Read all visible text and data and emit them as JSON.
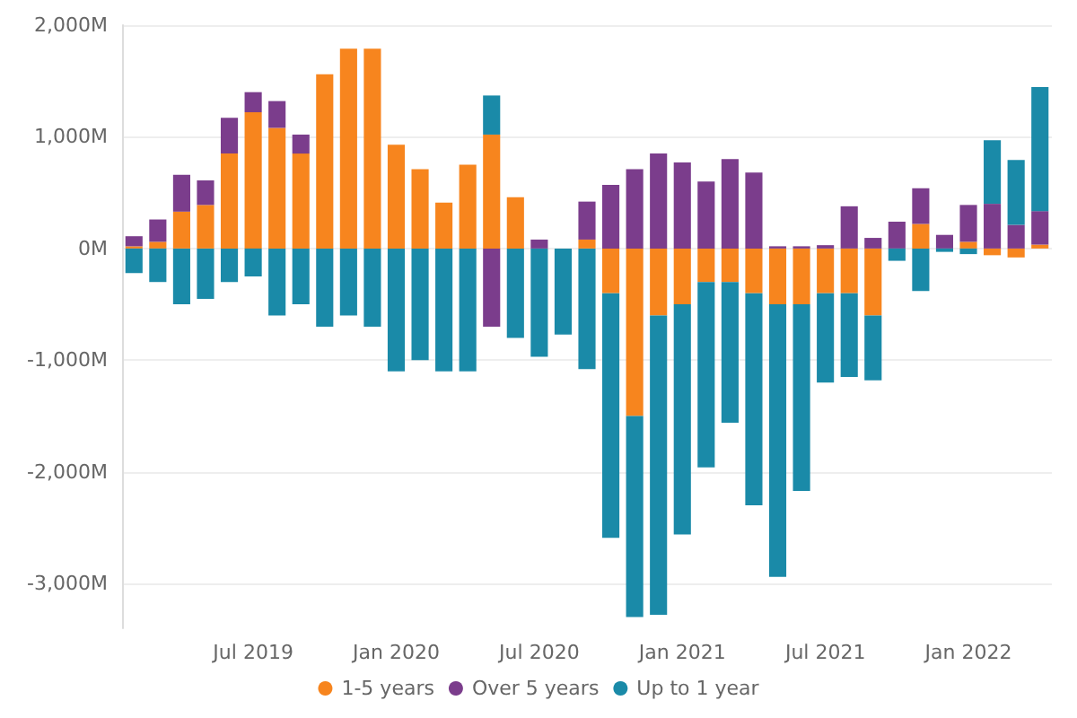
{
  "chart_data": {
    "type": "bar",
    "stacked": true,
    "categories": [
      null,
      null,
      null,
      null,
      null,
      "Jul 2019",
      null,
      null,
      null,
      null,
      null,
      "Jan 2020",
      null,
      null,
      null,
      null,
      null,
      "Jul 2020",
      null,
      null,
      null,
      null,
      null,
      "Jan 2021",
      null,
      null,
      null,
      null,
      null,
      "Jul 2021",
      null,
      null,
      null,
      null,
      null,
      "Jan 2022",
      null,
      null,
      null
    ],
    "series": [
      {
        "name": "1-5 years",
        "color": "#f7851e",
        "values": [
          20,
          60,
          330,
          390,
          850,
          1220,
          1080,
          850,
          1560,
          1790,
          1790,
          930,
          710,
          410,
          750,
          1020,
          460,
          0,
          0,
          80,
          -400,
          -1500,
          -600,
          -500,
          -300,
          -300,
          -400,
          -500,
          -500,
          -400,
          -400,
          -600,
          0,
          220,
          0,
          60,
          -60,
          -80,
          35
        ]
      },
      {
        "name": "Over 5 years",
        "color": "#7b3d8c",
        "values": [
          90,
          200,
          330,
          220,
          320,
          180,
          240,
          170,
          0,
          0,
          0,
          0,
          0,
          0,
          0,
          -700,
          0,
          80,
          0,
          340,
          570,
          710,
          850,
          770,
          600,
          800,
          680,
          20,
          20,
          30,
          378,
          95,
          240,
          320,
          122,
          330,
          400,
          212,
          300
        ]
      },
      {
        "name": "Up to 1 year",
        "color": "#1a8aa8",
        "values": [
          -220,
          -300,
          -500,
          -450,
          -300,
          -250,
          -600,
          -500,
          -700,
          -600,
          -700,
          -1100,
          -1000,
          -1100,
          -1100,
          350,
          -800,
          -970,
          -770,
          -1080,
          -2190,
          -1800,
          -2680,
          -2060,
          -1660,
          -1260,
          -1900,
          -2440,
          -1670,
          -800,
          -750,
          -580,
          -110,
          -380,
          -30,
          -50,
          570,
          580,
          1110
        ]
      }
    ],
    "ylim": [
      -3400,
      2000
    ],
    "yticks": [
      {
        "value": -3000,
        "label": "-3,000M"
      },
      {
        "value": -2000,
        "label": "-2,000M"
      },
      {
        "value": -1000,
        "label": "-1,000M"
      },
      {
        "value": 0,
        "label": "0M"
      },
      {
        "value": 1000,
        "label": "1,000M"
      },
      {
        "value": 2000,
        "label": "2,000M"
      }
    ],
    "grid": "y",
    "legend": "bottom"
  }
}
